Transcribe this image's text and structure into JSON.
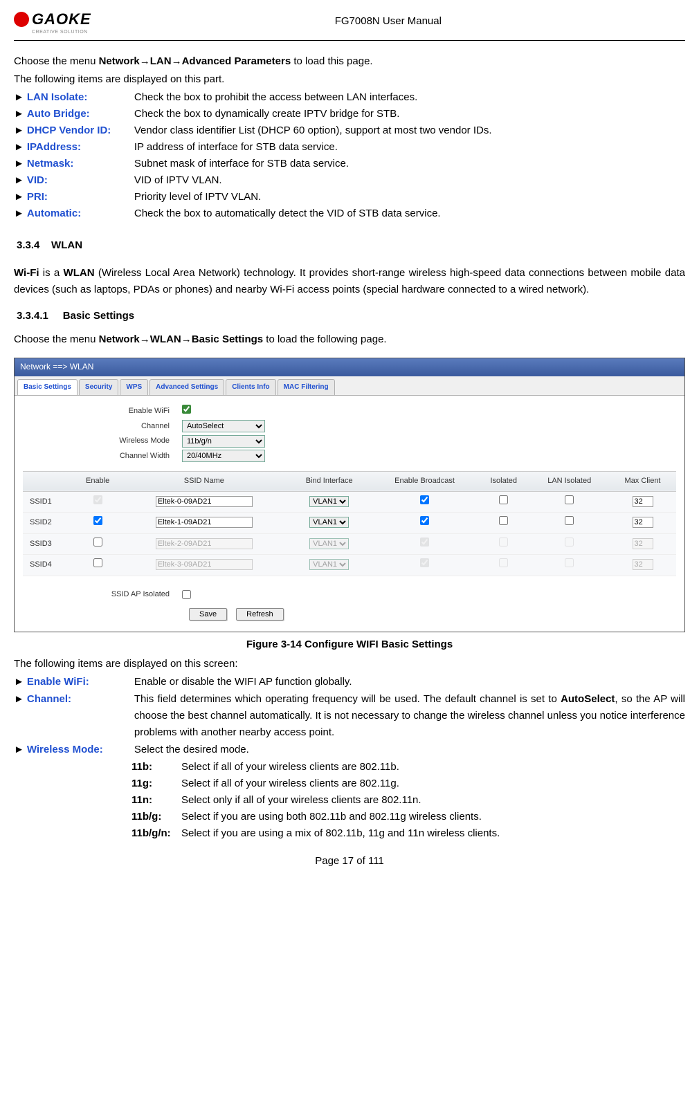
{
  "header": {
    "logo_name": "GAOKE",
    "logo_sub": "CREATIVE SOLUTION",
    "doc_title": "FG7008N User Manual"
  },
  "intro": {
    "line1_prefix": "Choose the menu ",
    "line1_path": "Network→LAN→Advanced Parameters",
    "line1_suffix": " to load this page.",
    "line2": "The following items are displayed on this part."
  },
  "params": [
    {
      "label": "LAN Isolate:",
      "desc": "Check the box to prohibit the access between LAN interfaces."
    },
    {
      "label": "Auto Bridge:",
      "desc": "Check the box to dynamically create IPTV bridge for STB."
    },
    {
      "label": "DHCP Vendor ID:",
      "desc": "Vendor class identifier List (DHCP 60 option), support at most two vendor IDs."
    },
    {
      "label": "IPAddress:",
      "desc": "IP address of interface for STB data service."
    },
    {
      "label": "Netmask:",
      "desc": "Subnet mask of interface for STB data service."
    },
    {
      "label": "VID:",
      "desc": "VID of IPTV VLAN."
    },
    {
      "label": "PRI:",
      "desc": "Priority level of IPTV VLAN."
    },
    {
      "label": "Automatic:",
      "desc": "Check the box to automatically detect the VID of STB data service."
    }
  ],
  "section": {
    "num": "3.3.4",
    "title": "WLAN",
    "wifi_para_prefix": "Wi-Fi",
    "wifi_para_mid": " is a ",
    "wifi_para_bold": "WLAN",
    "wifi_para_rest": " (Wireless Local Area Network) technology. It provides short-range wireless high-speed data connections between mobile data devices (such as laptops, PDAs or phones) and nearby Wi-Fi access points (special hardware connected to a wired network)."
  },
  "subsection": {
    "num": "3.3.4.1",
    "title": "Basic Settings",
    "choose_prefix": "Choose the menu ",
    "choose_path": "Network→WLAN→Basic Settings",
    "choose_suffix": " to load the following page."
  },
  "screenshot": {
    "title": "Network ==> WLAN",
    "tabs": [
      "Basic Settings",
      "Security",
      "WPS",
      "Advanced Settings",
      "Clients Info",
      "MAC Filtering"
    ],
    "fields": {
      "enable_wifi": "Enable WiFi",
      "channel": "Channel",
      "channel_value": "AutoSelect",
      "wireless_mode": "Wireless Mode",
      "wireless_mode_value": "11b/g/n",
      "channel_width": "Channel Width",
      "channel_width_value": "20/40MHz"
    },
    "table": {
      "headers": [
        "",
        "Enable",
        "SSID Name",
        "Bind Interface",
        "Enable Broadcast",
        "Isolated",
        "LAN Isolated",
        "Max Client"
      ],
      "rows": [
        {
          "id": "SSID1",
          "enabled": true,
          "enable_disabled": true,
          "name": "Eltek-0-09AD21",
          "bind": "VLAN1",
          "broadcast": true,
          "isolated": false,
          "lan_isolated": false,
          "max": "32",
          "row_disabled": false
        },
        {
          "id": "SSID2",
          "enabled": true,
          "enable_disabled": false,
          "name": "Eltek-1-09AD21",
          "bind": "VLAN1",
          "broadcast": true,
          "isolated": false,
          "lan_isolated": false,
          "max": "32",
          "row_disabled": false
        },
        {
          "id": "SSID3",
          "enabled": false,
          "enable_disabled": false,
          "name": "Eltek-2-09AD21",
          "bind": "VLAN1",
          "broadcast": true,
          "isolated": false,
          "lan_isolated": false,
          "max": "32",
          "row_disabled": true
        },
        {
          "id": "SSID4",
          "enabled": false,
          "enable_disabled": false,
          "name": "Eltek-3-09AD21",
          "bind": "VLAN1",
          "broadcast": true,
          "isolated": false,
          "lan_isolated": false,
          "max": "32",
          "row_disabled": true
        }
      ]
    },
    "ssid_ap_isolated": "SSID AP Isolated",
    "buttons": {
      "save": "Save",
      "refresh": "Refresh"
    }
  },
  "figure_caption": "Figure 3-14   Configure WIFI Basic Settings",
  "desc_intro": "The following items are displayed on this screen:",
  "desc": [
    {
      "label": "Enable WiFi:",
      "text": "Enable or disable the WIFI AP function globally."
    },
    {
      "label": "Channel:",
      "text": "This field determines which operating frequency will be used. The default channel is set to AutoSelect, so the AP will choose the best channel automatically. It is not necessary to change the wireless channel unless you notice interference problems with another nearby access point.",
      "bold_inline": "AutoSelect"
    },
    {
      "label": "Wireless Mode:",
      "text": "Select the desired mode."
    }
  ],
  "modes": [
    {
      "key": "11b:",
      "text": "Select if all of your wireless clients are 802.11b."
    },
    {
      "key": "11g:",
      "text": "Select if all of your wireless clients are 802.11g."
    },
    {
      "key": "11n:",
      "text": "Select only if all of your wireless clients are 802.11n."
    },
    {
      "key": "11b/g:",
      "text": "Select if you are using both 802.11b and 802.11g wireless clients."
    },
    {
      "key": "11b/g/n:",
      "text": "Select if you are using a mix of 802.11b, 11g and 11n wireless clients."
    }
  ],
  "footer": "Page 17 of 111"
}
